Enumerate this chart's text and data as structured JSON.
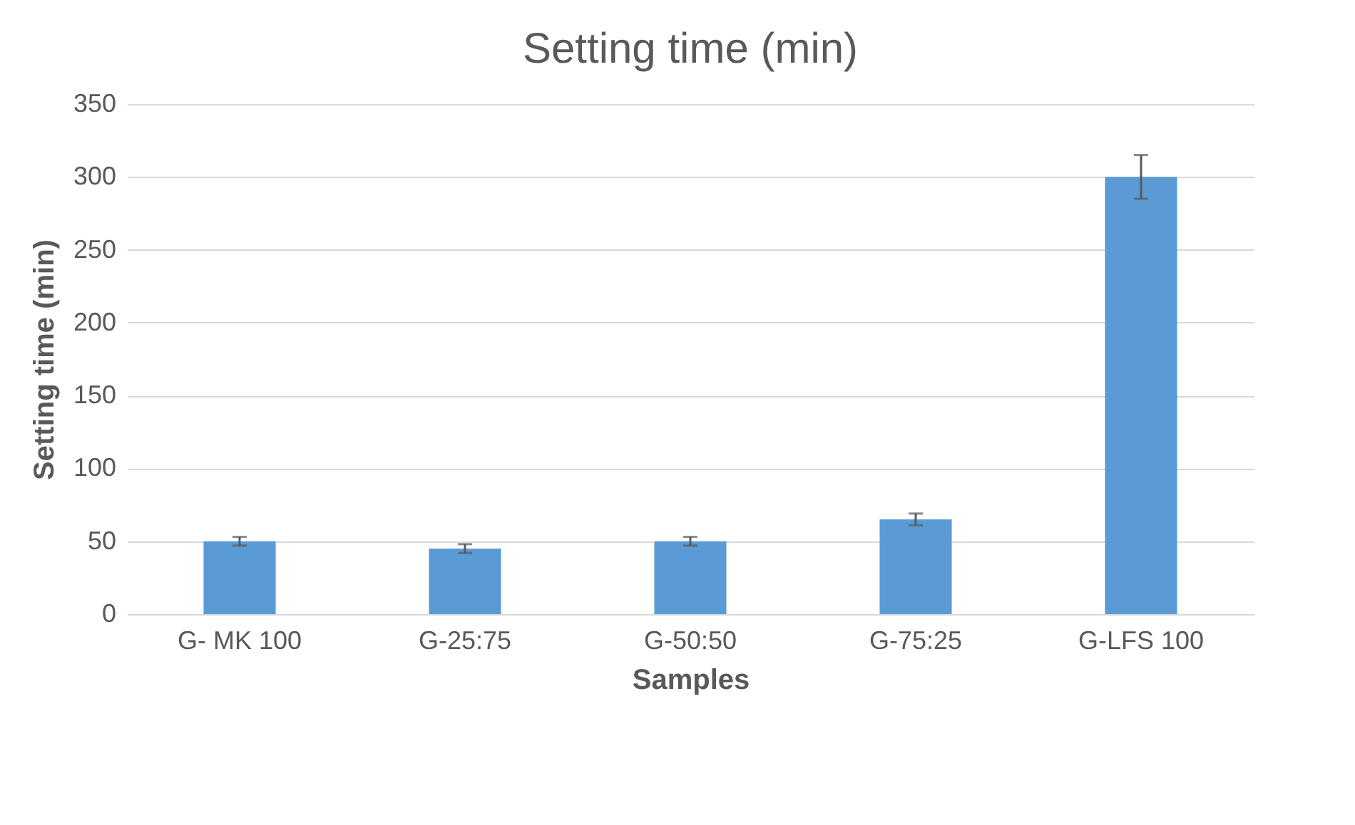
{
  "chart_data": {
    "type": "bar",
    "title": "Setting time (min)",
    "xlabel": "Samples",
    "ylabel": "Setting time (min)",
    "categories": [
      "G- MK 100",
      "G-25:75",
      "G-50:50",
      "G-75:25",
      "G-LFS 100"
    ],
    "values": [
      50,
      45,
      50,
      65,
      300
    ],
    "errors": [
      3,
      3,
      3,
      4,
      15
    ],
    "color": "#5b9bd5",
    "ylim": [
      0,
      350
    ],
    "yticks": [
      0,
      50,
      100,
      150,
      200,
      250,
      300,
      350
    ],
    "grid": "y"
  }
}
